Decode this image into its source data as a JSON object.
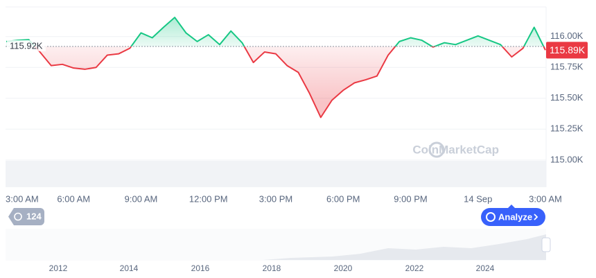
{
  "chart_data": {
    "type": "line",
    "categories": [
      "3:00 AM",
      null,
      null,
      null,
      null,
      null,
      "6:00 AM",
      null,
      null,
      null,
      null,
      null,
      "9:00 AM",
      null,
      null,
      null,
      null,
      null,
      "12:00 PM",
      null,
      null,
      null,
      null,
      null,
      "3:00 PM",
      null,
      null,
      null,
      null,
      null,
      "6:00 PM",
      null,
      null,
      null,
      null,
      null,
      "9:00 PM",
      null,
      null,
      null,
      null,
      null,
      "14 Sep",
      null,
      null,
      null,
      null,
      null,
      "3:00 AM"
    ],
    "values": [
      115960,
      115970,
      115975,
      115875,
      115765,
      115775,
      115745,
      115735,
      115750,
      115850,
      115860,
      115905,
      116030,
      115990,
      116075,
      116155,
      116030,
      115960,
      116015,
      115935,
      116045,
      115950,
      115790,
      115875,
      115860,
      115765,
      115710,
      115540,
      115345,
      115485,
      115565,
      115625,
      115650,
      115680,
      115850,
      115960,
      115990,
      115970,
      115915,
      115950,
      115935,
      115970,
      116005,
      115970,
      115935,
      115835,
      115905,
      116075,
      115890
    ],
    "color_up": "#16c784",
    "color_down": "#ea3943",
    "baseline": {
      "value": 115920,
      "label": "115.92K"
    },
    "last_price": {
      "value": 115890,
      "label": "115.89K"
    },
    "ylim": [
      114780,
      116240
    ],
    "yticks": [
      {
        "value": 115000,
        "label": "115.00K"
      },
      {
        "value": 115250,
        "label": "115.25K"
      },
      {
        "value": 115500,
        "label": "115.50K"
      },
      {
        "value": 115750,
        "label": "115.75K"
      },
      {
        "value": 116000,
        "label": "116.00K"
      }
    ],
    "grid": true,
    "watermark": "CoinMarketCap",
    "badge": 124,
    "button": "Analyze",
    "navigator_years": [
      "2012",
      "2014",
      "2016",
      "2018",
      "2020",
      "2022",
      "2024"
    ]
  }
}
